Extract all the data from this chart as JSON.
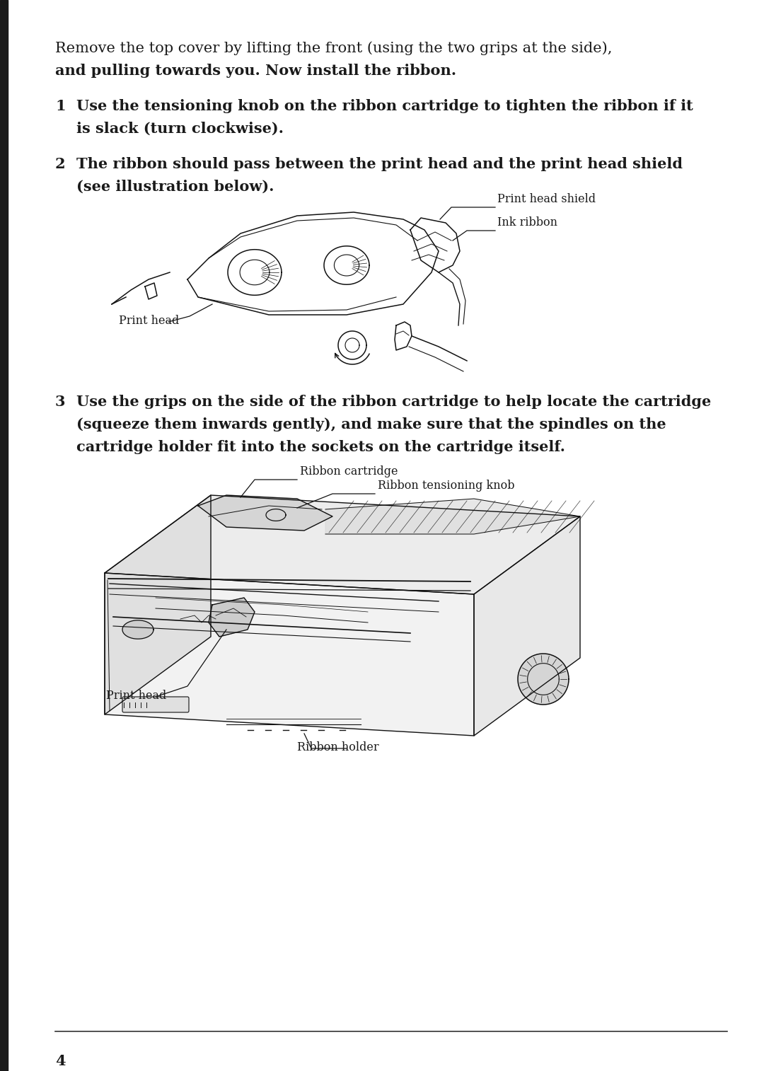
{
  "bg_color": "#ffffff",
  "text_color": "#1a1a1a",
  "page_number": "4",
  "intro_line1": "Remove the top cover by lifting the front (using the two grips at the side),",
  "intro_line2": "and pulling towards you. Now install the ribbon.",
  "item1_num": "1",
  "item1_line1": "Use the tensioning knob on the ribbon cartridge to tighten the ribbon if it",
  "item1_line2": "is slack (turn clockwise).",
  "item2_num": "2",
  "item2_line1": "The ribbon should pass between the print head and the print head shield",
  "item2_line2": "(see illustration below).",
  "item3_num": "3",
  "item3_line1": "Use the grips on the side of the ribbon cartridge to help locate the cartridge",
  "item3_line2": "(squeeze them inwards gently), and make sure that the spindles on the",
  "item3_line3": "cartridge holder fit into the sockets on the cartridge itself.",
  "lbl_shield": "Print head shield",
  "lbl_ink_ribbon": "Ink ribbon",
  "lbl_print_head_1": "Print head",
  "lbl_ribbon_cartridge": "Ribbon cartridge",
  "lbl_tensioning_knob": "Ribbon tensioning knob",
  "lbl_print_head_2": "Print head",
  "lbl_ribbon_holder": "Ribbon holder",
  "lc": "#111111",
  "fs_body": 15,
  "fs_bold": 15,
  "fs_label": 11.5,
  "fs_page": 15,
  "lm": 78
}
